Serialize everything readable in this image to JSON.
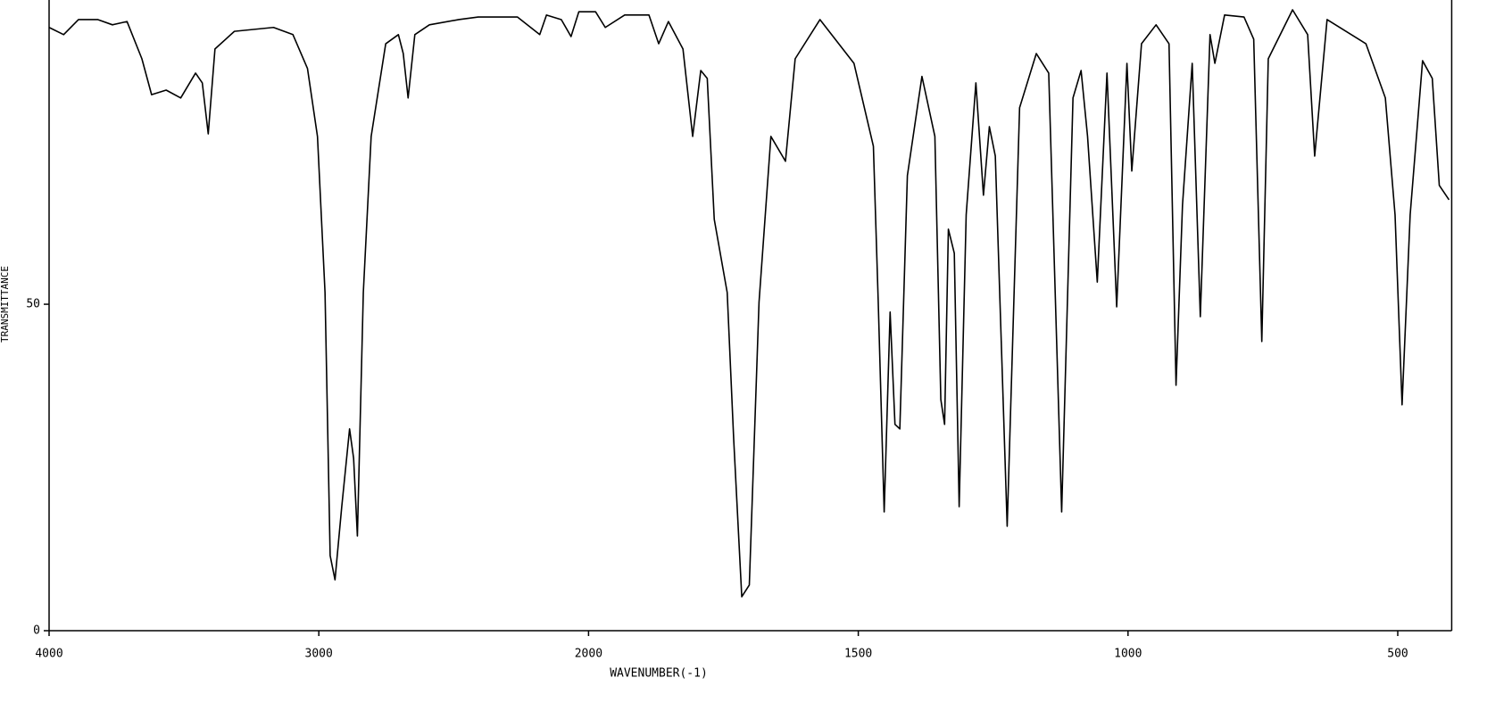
{
  "chart_data": {
    "type": "line",
    "x_label": "WAVENUMBER(-1)",
    "y_label": "TRANSMITTANCE",
    "xlim": [
      4000,
      400
    ],
    "xticks": [
      4000,
      3000,
      2000,
      1500,
      1000,
      500
    ],
    "ylim": [
      0,
      96.6
    ],
    "yticks": [
      0,
      50
    ],
    "grid": false,
    "series": [
      {
        "color": "#000000",
        "x": [
          4000,
          3946,
          3891,
          3819,
          3765,
          3711,
          3656,
          3620,
          3566,
          3512,
          3457,
          3432,
          3410,
          3385,
          3313,
          3168,
          3096,
          3042,
          3005,
          2977,
          2958,
          2940,
          2915,
          2886,
          2871,
          2857,
          2835,
          2806,
          2752,
          2705,
          2687,
          2669,
          2644,
          2590,
          2481,
          2409,
          2264,
          2181,
          2156,
          2101,
          2065,
          2036,
          1987,
          1969,
          1933,
          1888,
          1870,
          1852,
          1825,
          1807,
          1792,
          1780,
          1767,
          1743,
          1731,
          1716,
          1702,
          1684,
          1662,
          1635,
          1617,
          1571,
          1508,
          1472,
          1463,
          1452,
          1441,
          1432,
          1423,
          1409,
          1382,
          1358,
          1347,
          1340,
          1333,
          1322,
          1313,
          1300,
          1282,
          1268,
          1257,
          1246,
          1224,
          1201,
          1170,
          1147,
          1123,
          1102,
          1087,
          1075,
          1057,
          1039,
          1021,
          1002,
          993,
          975,
          948,
          924,
          911,
          899,
          881,
          866,
          848,
          839,
          821,
          785,
          767,
          752,
          740,
          695,
          667,
          654,
          631,
          559,
          523,
          505,
          492,
          477,
          454,
          436,
          423,
          405
        ],
        "values": [
          92.4,
          91.3,
          93.6,
          93.6,
          92.8,
          93.3,
          87.6,
          82.1,
          82.8,
          81.6,
          85.4,
          83.9,
          76.1,
          89.1,
          91.8,
          92.4,
          91.3,
          86.1,
          75.7,
          51.8,
          11.5,
          7.8,
          19.0,
          30.9,
          26.4,
          14.5,
          51.8,
          75.7,
          89.9,
          91.3,
          88.4,
          81.6,
          91.3,
          92.8,
          93.6,
          94.0,
          94.0,
          91.3,
          94.3,
          93.6,
          91.0,
          94.8,
          94.8,
          92.4,
          94.3,
          94.3,
          89.9,
          93.3,
          89.1,
          75.7,
          85.8,
          84.6,
          63.0,
          51.8,
          29.4,
          5.2,
          7.0,
          50.3,
          75.7,
          71.9,
          87.6,
          93.6,
          86.9,
          74.2,
          50.3,
          18.2,
          48.8,
          31.6,
          30.9,
          69.7,
          84.9,
          75.7,
          35.4,
          31.6,
          61.5,
          57.8,
          19.0,
          63.7,
          83.9,
          66.7,
          77.2,
          72.7,
          16.0,
          80.1,
          88.4,
          85.4,
          18.2,
          81.6,
          85.8,
          75.7,
          53.4,
          85.4,
          49.6,
          86.9,
          70.4,
          89.9,
          92.8,
          89.9,
          37.6,
          65.2,
          86.9,
          48.1,
          91.3,
          86.9,
          94.3,
          94.0,
          90.6,
          44.3,
          87.6,
          95.1,
          91.3,
          72.7,
          93.6,
          89.9,
          81.6,
          63.7,
          34.6,
          63.7,
          87.3,
          84.6,
          68.2,
          66.0
        ]
      }
    ]
  }
}
